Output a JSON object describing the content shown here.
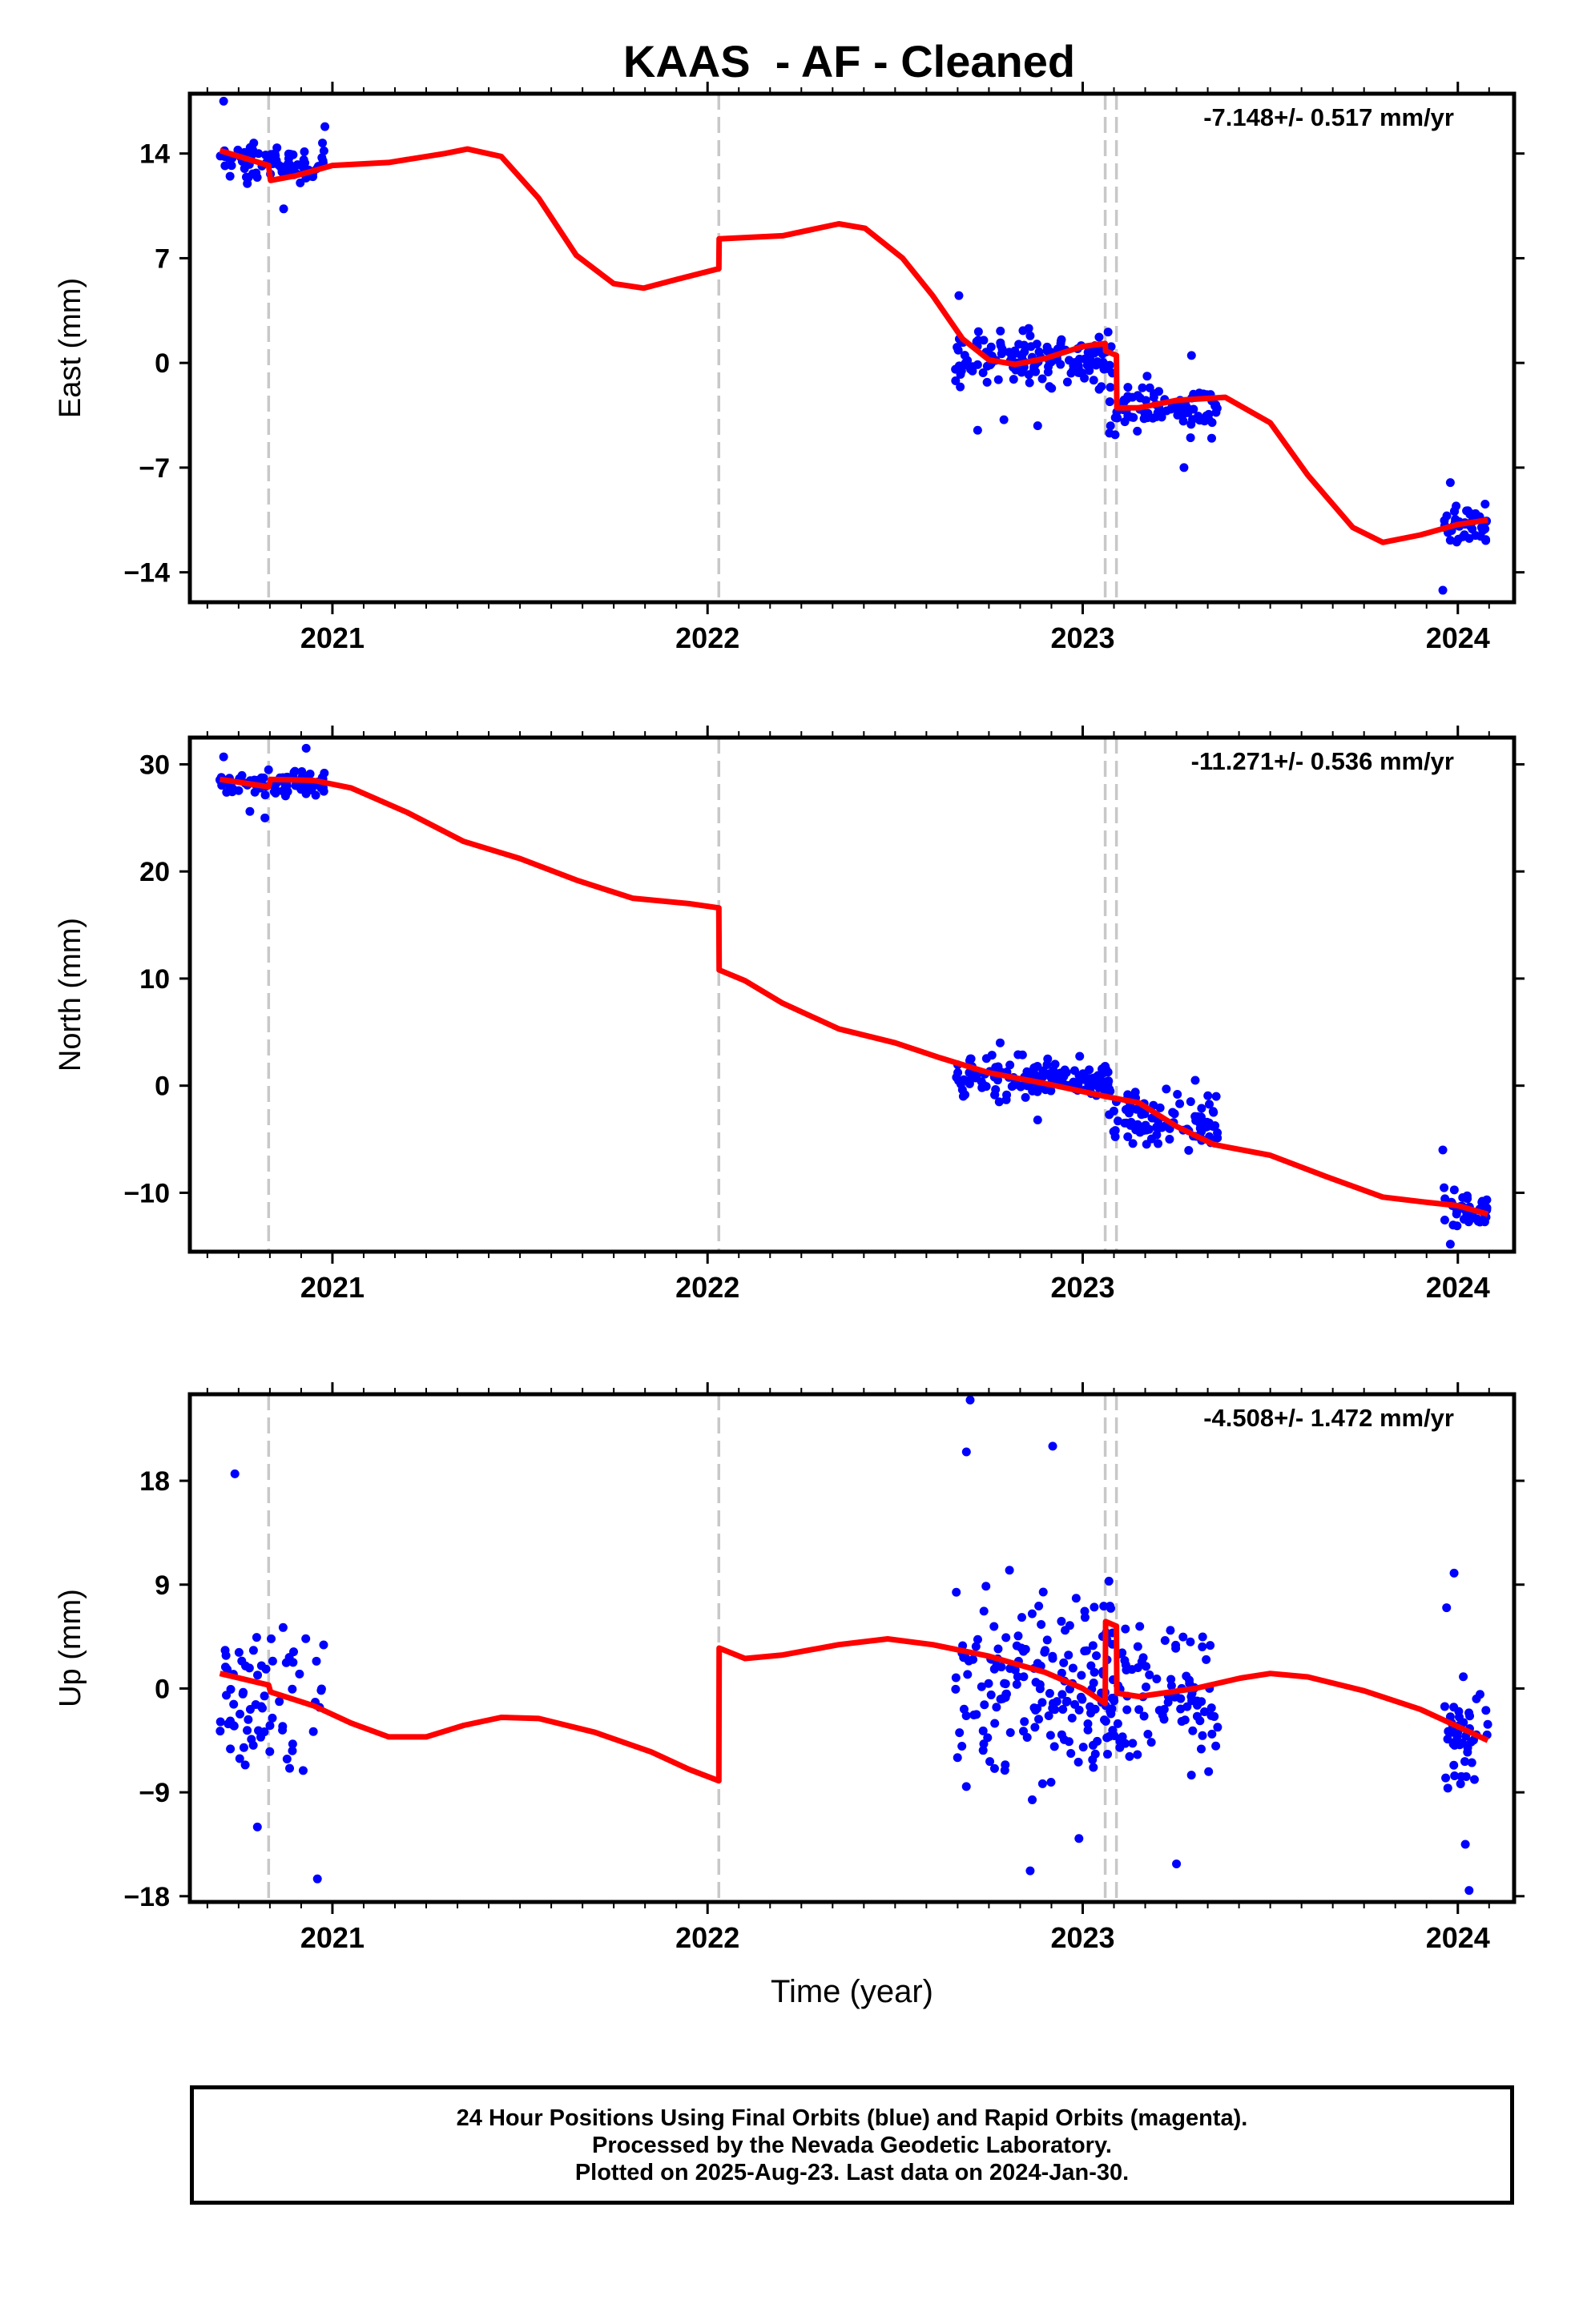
{
  "title": "KAAS  - AF - Cleaned",
  "footer": {
    "line1": "24 Hour Positions Using Final Orbits (blue) and Rapid Orbits (magenta).",
    "line2": "Processed by the Nevada Geodetic Laboratory.",
    "line3": "Plotted on 2025-Aug-23. Last data on 2024-Jan-30."
  },
  "colors": {
    "data": "#0000ff",
    "model": "#ff0000",
    "steps": "#c8c8c8",
    "axes": "#000000"
  },
  "chart_data": [
    {
      "type": "scatter",
      "ylabel": "East (mm)",
      "xlabel": "",
      "rate_text": "-7.148+/- 0.517 mm/yr",
      "xlim": [
        2020.62,
        2024.15
      ],
      "ylim": [
        -16,
        18
      ],
      "yticks": [
        14,
        7,
        0,
        -7,
        -14
      ],
      "ytick_labels": [
        "14",
        "7",
        "0",
        "−7",
        "−14"
      ],
      "xticks": [
        2021,
        2022,
        2023,
        2024
      ],
      "xtick_labels": [
        "2021",
        "2022",
        "2023",
        "2024"
      ],
      "step_lines": [
        2020.83,
        2022.03,
        2023.06,
        2023.09
      ],
      "model": [
        [
          2020.7,
          14.2
        ],
        [
          2020.83,
          13.2
        ],
        [
          2020.835,
          12.2
        ],
        [
          2020.9,
          12.5
        ],
        [
          2021.0,
          13.2
        ],
        [
          2021.15,
          13.4
        ],
        [
          2021.3,
          14.0
        ],
        [
          2021.36,
          14.3
        ],
        [
          2021.45,
          13.8
        ],
        [
          2021.55,
          11.0
        ],
        [
          2021.65,
          7.2
        ],
        [
          2021.75,
          5.3
        ],
        [
          2021.83,
          5.0
        ],
        [
          2021.92,
          5.6
        ],
        [
          2022.03,
          6.3
        ],
        [
          2022.031,
          8.3
        ],
        [
          2022.2,
          8.5
        ],
        [
          2022.35,
          9.3
        ],
        [
          2022.42,
          9.0
        ],
        [
          2022.52,
          7.0
        ],
        [
          2022.6,
          4.5
        ],
        [
          2022.68,
          1.6
        ],
        [
          2022.75,
          0.2
        ],
        [
          2022.82,
          -0.1
        ],
        [
          2022.9,
          0.3
        ],
        [
          2023.0,
          1.1
        ],
        [
          2023.06,
          1.3
        ],
        [
          2023.061,
          0.8
        ],
        [
          2023.09,
          0.5
        ],
        [
          2023.091,
          -3.0
        ],
        [
          2023.15,
          -3.0
        ],
        [
          2023.25,
          -2.5
        ],
        [
          2023.38,
          -2.3
        ],
        [
          2023.5,
          -4.0
        ],
        [
          2023.6,
          -7.5
        ],
        [
          2023.72,
          -11.0
        ],
        [
          2023.8,
          -12.0
        ],
        [
          2023.9,
          -11.5
        ],
        [
          2024.0,
          -10.8
        ],
        [
          2024.08,
          -10.5
        ]
      ],
      "clusters": [
        {
          "x0": 2020.7,
          "x1": 2020.98,
          "y0": 11.5,
          "y1": 15.2,
          "n": 80,
          "outliers": [
            [
              2020.71,
              17.5
            ],
            [
              2020.87,
              10.3
            ],
            [
              2020.98,
              15.8
            ]
          ]
        },
        {
          "x0": 2022.66,
          "x1": 2023.08,
          "y0": -2.5,
          "y1": 3.0,
          "n": 150,
          "outliers": [
            [
              2022.67,
              4.5
            ],
            [
              2022.72,
              -4.5
            ],
            [
              2022.79,
              -3.8
            ],
            [
              2022.88,
              -4.2
            ]
          ]
        },
        {
          "x0": 2023.07,
          "x1": 2023.36,
          "y0": -5.5,
          "y1": -0.5,
          "n": 90,
          "outliers": [
            [
              2023.27,
              -7.0
            ],
            [
              2023.29,
              0.5
            ]
          ]
        },
        {
          "x0": 2023.96,
          "x1": 2024.08,
          "y0": -13.0,
          "y1": -8.5,
          "n": 45,
          "outliers": [
            [
              2023.96,
              -15.2
            ],
            [
              2023.98,
              -8.0
            ]
          ]
        }
      ]
    },
    {
      "type": "scatter",
      "ylabel": "North (mm)",
      "xlabel": "",
      "rate_text": "-11.271+/- 0.536 mm/yr",
      "xlim": [
        2020.62,
        2024.15
      ],
      "ylim": [
        -15.5,
        32.5
      ],
      "yticks": [
        30,
        20,
        10,
        0,
        -10
      ],
      "ytick_labels": [
        "30",
        "20",
        "10",
        "0",
        "−10"
      ],
      "xticks": [
        2021,
        2022,
        2023,
        2024
      ],
      "xtick_labels": [
        "2021",
        "2022",
        "2023",
        "2024"
      ],
      "step_lines": [
        2020.83,
        2022.03,
        2023.06,
        2023.09
      ],
      "model": [
        [
          2020.7,
          28.6
        ],
        [
          2020.83,
          27.9
        ],
        [
          2020.835,
          28.6
        ],
        [
          2020.95,
          28.5
        ],
        [
          2021.05,
          27.8
        ],
        [
          2021.2,
          25.5
        ],
        [
          2021.35,
          22.8
        ],
        [
          2021.5,
          21.2
        ],
        [
          2021.65,
          19.2
        ],
        [
          2021.8,
          17.5
        ],
        [
          2021.95,
          17.0
        ],
        [
          2022.03,
          16.6
        ],
        [
          2022.031,
          10.8
        ],
        [
          2022.1,
          9.8
        ],
        [
          2022.2,
          7.7
        ],
        [
          2022.35,
          5.3
        ],
        [
          2022.5,
          4.0
        ],
        [
          2022.62,
          2.6
        ],
        [
          2022.75,
          1.2
        ],
        [
          2022.9,
          0.2
        ],
        [
          2023.06,
          -1.0
        ],
        [
          2023.15,
          -1.6
        ],
        [
          2023.25,
          -3.8
        ],
        [
          2023.35,
          -5.5
        ],
        [
          2023.5,
          -6.5
        ],
        [
          2023.65,
          -8.5
        ],
        [
          2023.8,
          -10.4
        ],
        [
          2023.92,
          -10.9
        ],
        [
          2024.0,
          -11.2
        ],
        [
          2024.08,
          -12.0
        ]
      ],
      "clusters": [
        {
          "x0": 2020.7,
          "x1": 2020.98,
          "y0": 26.5,
          "y1": 30.0,
          "n": 90,
          "outliers": [
            [
              2020.71,
              30.7
            ],
            [
              2020.78,
              25.6
            ],
            [
              2020.82,
              25.0
            ],
            [
              2020.93,
              31.5
            ]
          ]
        },
        {
          "x0": 2022.66,
          "x1": 2023.08,
          "y0": -2.5,
          "y1": 3.5,
          "n": 150,
          "outliers": [
            [
              2022.78,
              4.0
            ],
            [
              2022.88,
              -3.2
            ]
          ]
        },
        {
          "x0": 2023.07,
          "x1": 2023.36,
          "y0": -7.0,
          "y1": 0.5,
          "n": 100,
          "outliers": [
            [
              2023.3,
              0.5
            ]
          ]
        },
        {
          "x0": 2023.96,
          "x1": 2024.08,
          "y0": -14.0,
          "y1": -9.0,
          "n": 45,
          "outliers": [
            [
              2023.96,
              -6.0
            ],
            [
              2023.98,
              -14.8
            ]
          ]
        }
      ]
    },
    {
      "type": "scatter",
      "ylabel": "Up (mm)",
      "xlabel": "Time (year)",
      "rate_text": "-4.508+/- 1.472 mm/yr",
      "xlim": [
        2020.62,
        2024.15
      ],
      "ylim": [
        -18.5,
        25.5
      ],
      "yticks": [
        18,
        9,
        0,
        -9,
        -18
      ],
      "ytick_labels": [
        "18",
        "9",
        "0",
        "−9",
        "−18"
      ],
      "xticks": [
        2021,
        2022,
        2023,
        2024
      ],
      "xtick_labels": [
        "2021",
        "2022",
        "2023",
        "2024"
      ],
      "step_lines": [
        2020.83,
        2022.03,
        2023.06,
        2023.09
      ],
      "model": [
        [
          2020.7,
          1.3
        ],
        [
          2020.83,
          0.3
        ],
        [
          2020.835,
          -0.3
        ],
        [
          2020.95,
          -1.5
        ],
        [
          2021.05,
          -3.0
        ],
        [
          2021.15,
          -4.2
        ],
        [
          2021.25,
          -4.2
        ],
        [
          2021.35,
          -3.2
        ],
        [
          2021.45,
          -2.5
        ],
        [
          2021.55,
          -2.6
        ],
        [
          2021.7,
          -3.8
        ],
        [
          2021.85,
          -5.5
        ],
        [
          2021.95,
          -7.0
        ],
        [
          2022.03,
          -8.0
        ],
        [
          2022.031,
          3.5
        ],
        [
          2022.1,
          2.6
        ],
        [
          2022.2,
          2.9
        ],
        [
          2022.35,
          3.8
        ],
        [
          2022.48,
          4.3
        ],
        [
          2022.6,
          3.8
        ],
        [
          2022.75,
          2.8
        ],
        [
          2022.9,
          1.4
        ],
        [
          2023.0,
          0.0
        ],
        [
          2023.06,
          -1.3
        ],
        [
          2023.061,
          5.8
        ],
        [
          2023.09,
          5.4
        ],
        [
          2023.091,
          -0.4
        ],
        [
          2023.15,
          -0.7
        ],
        [
          2023.3,
          0.0
        ],
        [
          2023.42,
          0.9
        ],
        [
          2023.5,
          1.3
        ],
        [
          2023.6,
          1.0
        ],
        [
          2023.75,
          -0.2
        ],
        [
          2023.9,
          -1.8
        ],
        [
          2024.0,
          -3.3
        ],
        [
          2024.08,
          -4.5
        ]
      ],
      "clusters": [
        {
          "x0": 2020.7,
          "x1": 2020.98,
          "y0": -10.5,
          "y1": 8.5,
          "n": 70,
          "outliers": [
            [
              2020.74,
              18.6
            ],
            [
              2020.96,
              -16.5
            ],
            [
              2020.8,
              -12.0
            ]
          ]
        },
        {
          "x0": 2022.66,
          "x1": 2023.08,
          "y0": -13.0,
          "y1": 14.0,
          "n": 170,
          "outliers": [
            [
              2022.7,
              25.0
            ],
            [
              2022.69,
              20.5
            ],
            [
              2022.92,
              21.0
            ],
            [
              2022.86,
              -15.8
            ],
            [
              2022.99,
              -13.0
            ]
          ]
        },
        {
          "x0": 2023.07,
          "x1": 2023.36,
          "y0": -11.0,
          "y1": 10.0,
          "n": 95,
          "outliers": [
            [
              2023.25,
              -15.2
            ],
            [
              2023.07,
              9.3
            ]
          ]
        },
        {
          "x0": 2023.96,
          "x1": 2024.08,
          "y0": -11.5,
          "y1": 3.5,
          "n": 45,
          "outliers": [
            [
              2023.99,
              10.0
            ],
            [
              2024.02,
              -13.5
            ],
            [
              2024.03,
              -17.5
            ],
            [
              2023.97,
              7.0
            ]
          ]
        }
      ]
    }
  ]
}
